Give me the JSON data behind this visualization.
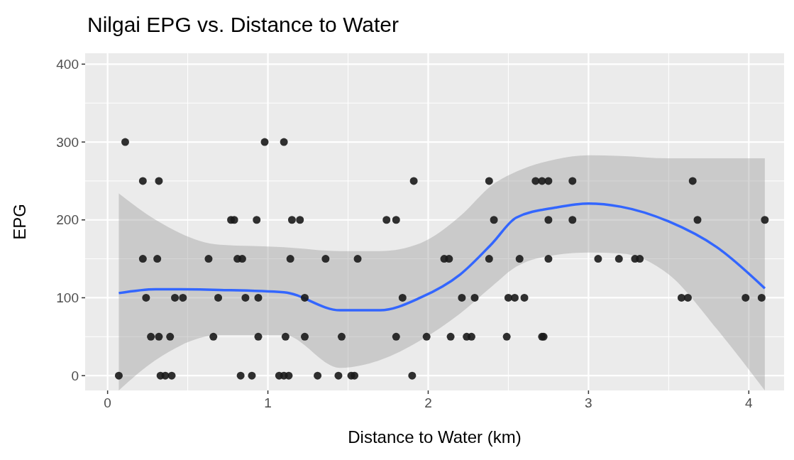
{
  "chart_data": {
    "type": "scatter",
    "title": "Nilgai EPG vs. Distance to Water",
    "xlabel": "Distance to Water (km)",
    "ylabel": "EPG",
    "xlim": [
      -0.14,
      4.22
    ],
    "ylim": [
      -19,
      414
    ],
    "xticks": [
      0,
      1,
      2,
      3,
      4
    ],
    "yticks": [
      0,
      100,
      200,
      300,
      400
    ],
    "grid": true,
    "series": [
      {
        "color": "#1a1a1a",
        "marker": "circle",
        "x": [
          0.11,
          0.98,
          1.1,
          0.22,
          0.32,
          1.91,
          0.77,
          0.79,
          0.93,
          1.15,
          1.2,
          1.74,
          1.8,
          0.22,
          0.31,
          0.63,
          0.81,
          0.84,
          1.14,
          1.36,
          1.56,
          2.1,
          2.13,
          0.24,
          0.42,
          0.47,
          0.69,
          0.86,
          0.94,
          1.23,
          1.84,
          0.27,
          0.32,
          0.39,
          0.66,
          0.94,
          1.11,
          1.23,
          1.46,
          1.8,
          1.99,
          2.14,
          0.07,
          0.33,
          0.36,
          0.4,
          0.83,
          0.9,
          1.07,
          1.1,
          1.13,
          1.31,
          1.44,
          1.52,
          1.54,
          1.9,
          2.38,
          2.67,
          2.71,
          2.75,
          2.9,
          2.41,
          2.75,
          2.9,
          2.38,
          2.57,
          2.75,
          3.06,
          3.19,
          2.21,
          2.29,
          2.5,
          2.54,
          2.6,
          2.24,
          2.27,
          2.49,
          2.71,
          2.72,
          3.65,
          3.68,
          4.1,
          3.29,
          3.32,
          3.58,
          3.62,
          3.98,
          4.08
        ],
        "values": [
          300,
          300,
          300,
          250,
          250,
          250,
          200,
          200,
          200,
          200,
          200,
          200,
          200,
          150,
          150,
          150,
          150,
          150,
          150,
          150,
          150,
          150,
          150,
          100,
          100,
          100,
          100,
          100,
          100,
          100,
          100,
          50,
          50,
          50,
          50,
          50,
          50,
          50,
          50,
          50,
          50,
          50,
          0,
          0,
          0,
          0,
          0,
          0,
          0,
          0,
          0,
          0,
          0,
          0,
          0,
          0,
          250,
          250,
          250,
          250,
          250,
          200,
          200,
          200,
          150,
          150,
          150,
          150,
          150,
          100,
          100,
          100,
          100,
          100,
          50,
          50,
          50,
          50,
          50,
          250,
          200,
          200,
          150,
          150,
          100,
          100,
          100,
          100
        ]
      },
      {
        "type": "line",
        "color": "#3366ff",
        "x": [
          0.07,
          0.3,
          0.7,
          1.1,
          1.45,
          1.7,
          1.95,
          2.2,
          2.4,
          2.55,
          2.8,
          3.0,
          3.2,
          3.5,
          3.8,
          4.1
        ],
        "values": [
          106,
          111,
          110,
          107,
          84,
          84,
          100,
          130,
          170,
          203,
          216,
          221,
          217,
          198,
          165,
          112
        ],
        "lower": [
          -19,
          20,
          52,
          52,
          10,
          20,
          45,
          80,
          115,
          140,
          155,
          158,
          157,
          130,
          60,
          -19
        ],
        "upper": [
          234,
          200,
          168,
          165,
          160,
          160,
          170,
          205,
          245,
          262,
          278,
          283,
          282,
          279,
          279,
          279
        ]
      }
    ]
  }
}
